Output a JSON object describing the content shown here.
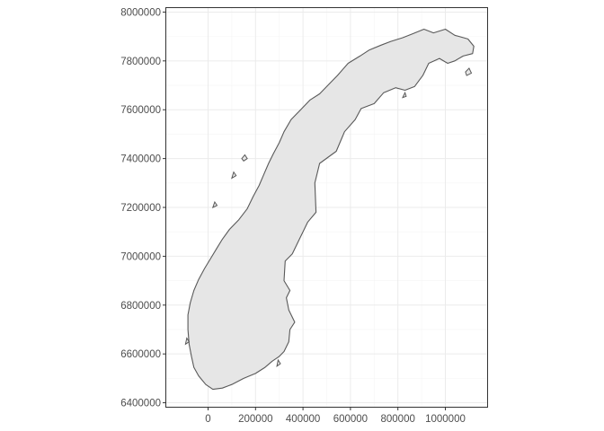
{
  "chart_data": {
    "type": "map",
    "projection_units": "metres (UTM)",
    "x_axis": {
      "range": [
        -180000,
        1180000
      ],
      "ticks": [
        0,
        200000,
        400000,
        600000,
        800000,
        1000000
      ],
      "tick_labels": [
        "0",
        "200000",
        "400000",
        "600000",
        "800000",
        "1000000"
      ]
    },
    "y_axis": {
      "range": [
        6380000,
        8020000
      ],
      "ticks": [
        6400000,
        6600000,
        6800000,
        7000000,
        7200000,
        7400000,
        7600000,
        7800000,
        8000000
      ],
      "tick_labels": [
        "6400000",
        "6600000",
        "6800000",
        "7000000",
        "7200000",
        "7400000",
        "7600000",
        "7800000",
        "8000000"
      ]
    },
    "grid": true,
    "panel_border": true,
    "region": {
      "fill": "#e6e6e6",
      "stroke": "#595959",
      "outline": [
        [
          -60000,
          6545000
        ],
        [
          -40000,
          6510000
        ],
        [
          -10000,
          6475000
        ],
        [
          20000,
          6455000
        ],
        [
          60000,
          6460000
        ],
        [
          100000,
          6475000
        ],
        [
          150000,
          6500000
        ],
        [
          200000,
          6520000
        ],
        [
          240000,
          6545000
        ],
        [
          270000,
          6570000
        ],
        [
          300000,
          6590000
        ],
        [
          320000,
          6610000
        ],
        [
          340000,
          6650000
        ],
        [
          345000,
          6700000
        ],
        [
          365000,
          6730000
        ],
        [
          340000,
          6780000
        ],
        [
          330000,
          6830000
        ],
        [
          345000,
          6860000
        ],
        [
          320000,
          6900000
        ],
        [
          325000,
          6980000
        ],
        [
          355000,
          7010000
        ],
        [
          385000,
          7070000
        ],
        [
          420000,
          7140000
        ],
        [
          455000,
          7180000
        ],
        [
          450000,
          7300000
        ],
        [
          470000,
          7380000
        ],
        [
          540000,
          7430000
        ],
        [
          575000,
          7510000
        ],
        [
          620000,
          7560000
        ],
        [
          645000,
          7605000
        ],
        [
          700000,
          7625000
        ],
        [
          740000,
          7670000
        ],
        [
          790000,
          7690000
        ],
        [
          830000,
          7680000
        ],
        [
          870000,
          7695000
        ],
        [
          905000,
          7740000
        ],
        [
          930000,
          7790000
        ],
        [
          975000,
          7810000
        ],
        [
          1010000,
          7790000
        ],
        [
          1040000,
          7800000
        ],
        [
          1075000,
          7820000
        ],
        [
          1115000,
          7830000
        ],
        [
          1120000,
          7860000
        ],
        [
          1095000,
          7890000
        ],
        [
          1040000,
          7905000
        ],
        [
          1000000,
          7930000
        ],
        [
          950000,
          7915000
        ],
        [
          910000,
          7930000
        ],
        [
          860000,
          7910000
        ],
        [
          820000,
          7895000
        ],
        [
          770000,
          7880000
        ],
        [
          730000,
          7865000
        ],
        [
          680000,
          7845000
        ],
        [
          640000,
          7820000
        ],
        [
          590000,
          7790000
        ],
        [
          545000,
          7740000
        ],
        [
          505000,
          7700000
        ],
        [
          470000,
          7665000
        ],
        [
          430000,
          7640000
        ],
        [
          390000,
          7600000
        ],
        [
          350000,
          7560000
        ],
        [
          320000,
          7510000
        ],
        [
          300000,
          7465000
        ],
        [
          275000,
          7420000
        ],
        [
          255000,
          7380000
        ],
        [
          235000,
          7335000
        ],
        [
          215000,
          7290000
        ],
        [
          190000,
          7245000
        ],
        [
          165000,
          7195000
        ],
        [
          130000,
          7150000
        ],
        [
          90000,
          7110000
        ],
        [
          60000,
          7070000
        ],
        [
          35000,
          7030000
        ],
        [
          10000,
          6990000
        ],
        [
          -15000,
          6950000
        ],
        [
          -40000,
          6905000
        ],
        [
          -60000,
          6860000
        ],
        [
          -75000,
          6810000
        ],
        [
          -85000,
          6760000
        ],
        [
          -85000,
          6700000
        ],
        [
          -80000,
          6640000
        ],
        [
          -70000,
          6590000
        ]
      ],
      "islands": [
        [
          [
            1090000,
            7740000
          ],
          [
            1110000,
            7750000
          ],
          [
            1100000,
            7770000
          ],
          [
            1085000,
            7755000
          ]
        ],
        [
          [
            820000,
            7650000
          ],
          [
            835000,
            7655000
          ],
          [
            830000,
            7670000
          ]
        ],
        [
          [
            150000,
            7390000
          ],
          [
            165000,
            7400000
          ],
          [
            155000,
            7415000
          ],
          [
            142000,
            7400000
          ]
        ],
        [
          [
            100000,
            7320000
          ],
          [
            118000,
            7330000
          ],
          [
            108000,
            7345000
          ]
        ],
        [
          [
            20000,
            7200000
          ],
          [
            38000,
            7208000
          ],
          [
            28000,
            7222000
          ]
        ],
        [
          [
            -95000,
            6640000
          ],
          [
            -80000,
            6650000
          ],
          [
            -90000,
            6665000
          ]
        ],
        [
          [
            290000,
            6550000
          ],
          [
            305000,
            6560000
          ],
          [
            295000,
            6575000
          ]
        ]
      ]
    }
  }
}
